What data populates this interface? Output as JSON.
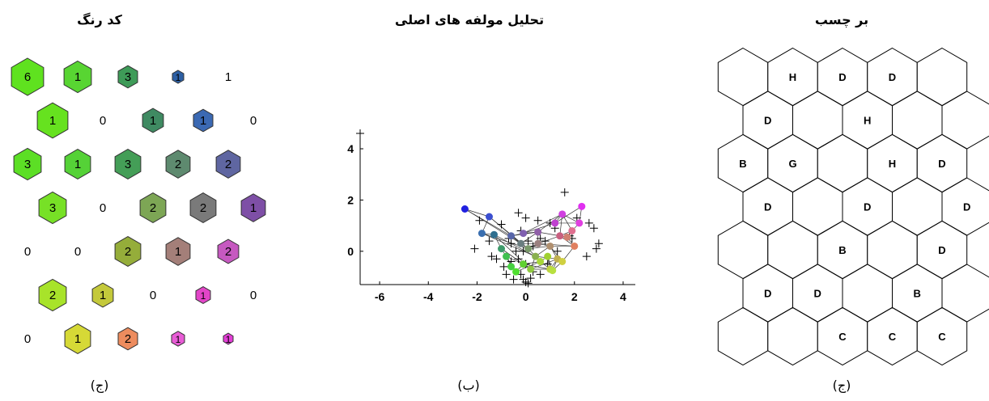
{
  "panels": {
    "color_code": {
      "title": "کد رنگ",
      "caption": "(ج)"
    },
    "pca": {
      "title": "تحلیل مولفه های اصلی",
      "caption": "(ب)"
    },
    "labels": {
      "title": "بر چسب",
      "caption": "(ج)"
    }
  },
  "chart_data": [
    {
      "type": "hexbin",
      "name": "color-code-map",
      "rows": [
        [
          {
            "v": 6,
            "c": "#5fe21f",
            "s": 1.0
          },
          {
            "v": 1,
            "c": "#58d532",
            "s": 0.85
          },
          {
            "v": 3,
            "c": "#3e9b58",
            "s": 0.6
          },
          {
            "v": 1,
            "c": "#2c5fa4",
            "s": 0.35
          },
          {
            "v": 1,
            "c": null,
            "s": 0
          }
        ],
        [
          {
            "v": 1,
            "c": "#66e21f",
            "s": 0.95
          },
          {
            "v": 0,
            "c": null,
            "s": 0
          },
          {
            "v": 1,
            "c": "#3f8a62",
            "s": 0.65
          },
          {
            "v": 1,
            "c": "#3b69b3",
            "s": 0.6
          },
          {
            "v": 0,
            "c": null,
            "s": 0
          }
        ],
        [
          {
            "v": 3,
            "c": "#5cdf25",
            "s": 0.85
          },
          {
            "v": 1,
            "c": "#55d237",
            "s": 0.8
          },
          {
            "v": 3,
            "c": "#449e57",
            "s": 0.8
          },
          {
            "v": 2,
            "c": "#5e8a6f",
            "s": 0.75
          },
          {
            "v": 2,
            "c": "#5f66a1",
            "s": 0.75
          }
        ],
        [
          {
            "v": 3,
            "c": "#77e126",
            "s": 0.85
          },
          {
            "v": 0,
            "c": null,
            "s": 0
          },
          {
            "v": 2,
            "c": "#7da655",
            "s": 0.8
          },
          {
            "v": 2,
            "c": "#7a7a7a",
            "s": 0.8
          },
          {
            "v": 1,
            "c": "#7e4fa6",
            "s": 0.75
          }
        ],
        [
          {
            "v": 0,
            "c": null,
            "s": 0
          },
          {
            "v": 0,
            "c": null,
            "s": 0
          },
          {
            "v": 2,
            "c": "#95ad3a",
            "s": 0.8
          },
          {
            "v": 1,
            "c": "#a47f79",
            "s": 0.75
          },
          {
            "v": 2,
            "c": "#c659c0",
            "s": 0.65
          }
        ],
        [
          {
            "v": 2,
            "c": "#a8e32a",
            "s": 0.85
          },
          {
            "v": 1,
            "c": "#c4c93b",
            "s": 0.65
          },
          {
            "v": 0,
            "c": null,
            "s": 0
          },
          {
            "v": 1,
            "c": "#e245c8",
            "s": 0.45
          },
          {
            "v": 0,
            "c": null,
            "s": 0
          }
        ],
        [
          {
            "v": 0,
            "c": null,
            "s": 0
          },
          {
            "v": 1,
            "c": "#d6d936",
            "s": 0.8
          },
          {
            "v": 2,
            "c": "#ed8c5e",
            "s": 0.6
          },
          {
            "v": 1,
            "c": "#e85cd6",
            "s": 0.4
          },
          {
            "v": 1,
            "c": "#e33ed6",
            "s": 0.3
          }
        ]
      ]
    },
    {
      "type": "scatter",
      "name": "pca-scatter",
      "xlim": [
        -6.8,
        4.5
      ],
      "ylim": [
        -1.3,
        4.6
      ],
      "xticks": [
        -6,
        -4,
        -2,
        0,
        2,
        4
      ],
      "yticks": [
        0,
        2,
        4
      ],
      "nodes": [
        [
          [
            -2.5,
            1.65,
            "#2020e0"
          ],
          [
            -1.5,
            1.35,
            "#3b4fd0"
          ],
          [
            -1.8,
            0.7,
            "#3a6fb0"
          ],
          [
            -1.3,
            0.65,
            "#2f6f8f"
          ],
          [
            -1.0,
            0.1,
            "#3d9a6a"
          ],
          [
            -0.8,
            -0.2,
            "#40c050"
          ],
          [
            -0.6,
            -0.6,
            "#45d040"
          ]
        ],
        [
          [
            -0.6,
            0.6,
            "#5866a8"
          ],
          [
            -0.2,
            0.3,
            "#6a7d80"
          ],
          [
            0.1,
            0.1,
            "#7a9a6a"
          ],
          [
            0.4,
            -0.2,
            "#8ab050"
          ],
          [
            0.2,
            -0.7,
            "#90c840"
          ],
          [
            -0.1,
            -0.5,
            "#60d030"
          ],
          [
            -0.4,
            -0.8,
            "#50e030"
          ]
        ],
        [
          [
            -0.1,
            0.7,
            "#8060b0"
          ],
          [
            0.5,
            0.75,
            "#9060a8"
          ],
          [
            0.5,
            0.3,
            "#9a8080"
          ],
          [
            1.0,
            0.2,
            "#b09070"
          ],
          [
            1.3,
            -0.3,
            "#c0b050"
          ],
          [
            1.0,
            -0.7,
            "#c0d040"
          ],
          [
            0.6,
            -0.4,
            "#a8d838"
          ]
        ],
        [
          [
            1.2,
            1.1,
            "#c040d0"
          ],
          [
            1.5,
            1.45,
            "#d040e0"
          ],
          [
            1.4,
            0.6,
            "#c86080"
          ],
          [
            2.0,
            0.2,
            "#e08060"
          ],
          [
            1.5,
            -0.4,
            "#d0d040"
          ],
          [
            1.1,
            -0.75,
            "#b8e040"
          ],
          [
            0.9,
            -0.2,
            "#a0d030"
          ]
        ],
        [
          [
            2.3,
            1.75,
            "#e030f0"
          ],
          [
            2.2,
            1.1,
            "#e040e0"
          ],
          [
            1.9,
            0.8,
            "#e07090"
          ],
          [
            1.7,
            0.55,
            "#d08070"
          ]
        ]
      ],
      "plus": [
        [
          -1.9,
          1.2
        ],
        [
          -1.5,
          0.4
        ],
        [
          -1.0,
          1.05
        ],
        [
          -0.2,
          0.8
        ],
        [
          -0.3,
          1.5
        ],
        [
          -0.6,
          0.3
        ],
        [
          -1.2,
          -0.3
        ],
        [
          -2.1,
          0.1
        ],
        [
          -1.4,
          -0.2
        ],
        [
          -0.8,
          -0.9
        ],
        [
          -0.5,
          -1.1
        ],
        [
          -0.2,
          -0.9
        ],
        [
          0.0,
          -1.2
        ],
        [
          0.2,
          -1.05
        ],
        [
          0.3,
          -0.8
        ],
        [
          0.0,
          -0.5
        ],
        [
          -0.3,
          -0.3
        ],
        [
          0.6,
          -0.9
        ],
        [
          0.8,
          0.4
        ],
        [
          1.0,
          1.1
        ],
        [
          1.2,
          0.9
        ],
        [
          1.6,
          2.3
        ],
        [
          1.8,
          0.6
        ],
        [
          2.1,
          1.3
        ],
        [
          2.6,
          1.1
        ],
        [
          2.8,
          0.9
        ],
        [
          3.0,
          0.3
        ],
        [
          2.9,
          0.1
        ],
        [
          2.5,
          -0.2
        ],
        [
          1.9,
          0.5
        ],
        [
          0.5,
          1.2
        ],
        [
          0.0,
          1.3
        ],
        [
          -0.4,
          0.0
        ],
        [
          0.1,
          0.4
        ],
        [
          0.3,
          0.2
        ],
        [
          0.9,
          -0.5
        ],
        [
          1.3,
          0.0
        ],
        [
          -0.7,
          0.5
        ],
        [
          -0.9,
          -0.6
        ],
        [
          -0.6,
          -0.4
        ],
        [
          -0.1,
          0.0
        ],
        [
          0.6,
          0.5
        ],
        [
          -0.1,
          -1.1
        ],
        [
          0.1,
          -1.25
        ]
      ]
    },
    {
      "type": "hexgrid",
      "name": "label-map",
      "rows": [
        [
          "",
          "H",
          "D",
          "D",
          ""
        ],
        [
          "D",
          "",
          "H",
          "",
          ""
        ],
        [
          "B",
          "G",
          "",
          "H",
          "D"
        ],
        [
          "D",
          "",
          "D",
          "",
          "D"
        ],
        [
          "",
          "",
          "B",
          "",
          "D"
        ],
        [
          "D",
          "D",
          "",
          "B",
          ""
        ],
        [
          "",
          "",
          "C",
          "C",
          "C"
        ]
      ]
    }
  ]
}
